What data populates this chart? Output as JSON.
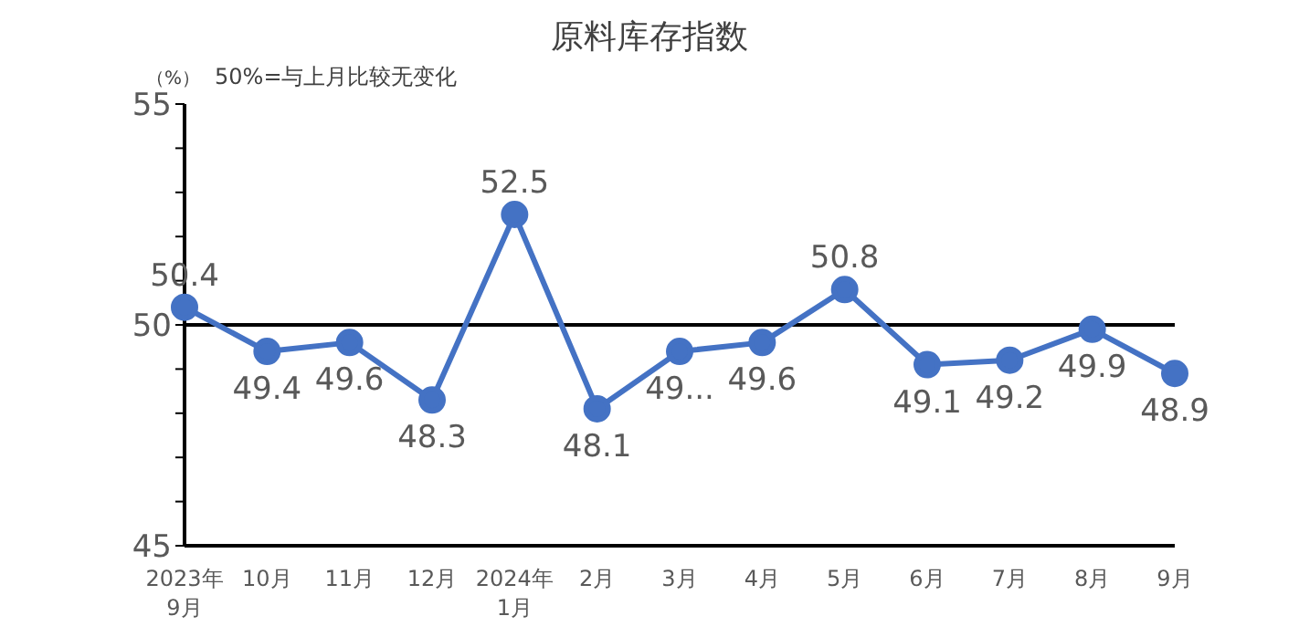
{
  "chart_data": {
    "type": "line",
    "title": "原料库存指数",
    "ylabel": "（%）",
    "annotations": [
      "50%=与上月比较无变化"
    ],
    "categories": [
      "2023年\n9月",
      "10月",
      "11月",
      "12月",
      "2024年\n1月",
      "2月",
      "3月",
      "4月",
      "5月",
      "6月",
      "7月",
      "8月",
      "9月"
    ],
    "series": [
      {
        "color": "#4472c4",
        "values": [
          50.4,
          49.4,
          49.6,
          48.3,
          52.5,
          48.1,
          49.4,
          49.6,
          50.8,
          49.1,
          49.2,
          49.9,
          48.9
        ],
        "value_labels": [
          "50.4",
          "49.4",
          "49.6",
          "48.3",
          "52.5",
          "48.1",
          "49...",
          "49.6",
          "50.8",
          "49.1",
          "49.2",
          "49.9",
          "48.9"
        ]
      }
    ],
    "ylim": [
      45,
      55
    ],
    "yticks": [
      45,
      {
        "value": 46,
        "label": null
      },
      {
        "value": 47,
        "label": null
      },
      {
        "value": 48,
        "label": null
      },
      {
        "value": 49,
        "label": null
      },
      50,
      {
        "value": 51,
        "label": null
      },
      {
        "value": 52,
        "label": null
      },
      {
        "value": 53,
        "label": null
      },
      {
        "value": 54,
        "label": null
      },
      55
    ],
    "ref_lines": [
      {
        "axis": "y",
        "value": 50,
        "color": "#000000"
      }
    ],
    "marker": "circle",
    "line_style": "solid",
    "grid": false,
    "legend": false
  }
}
